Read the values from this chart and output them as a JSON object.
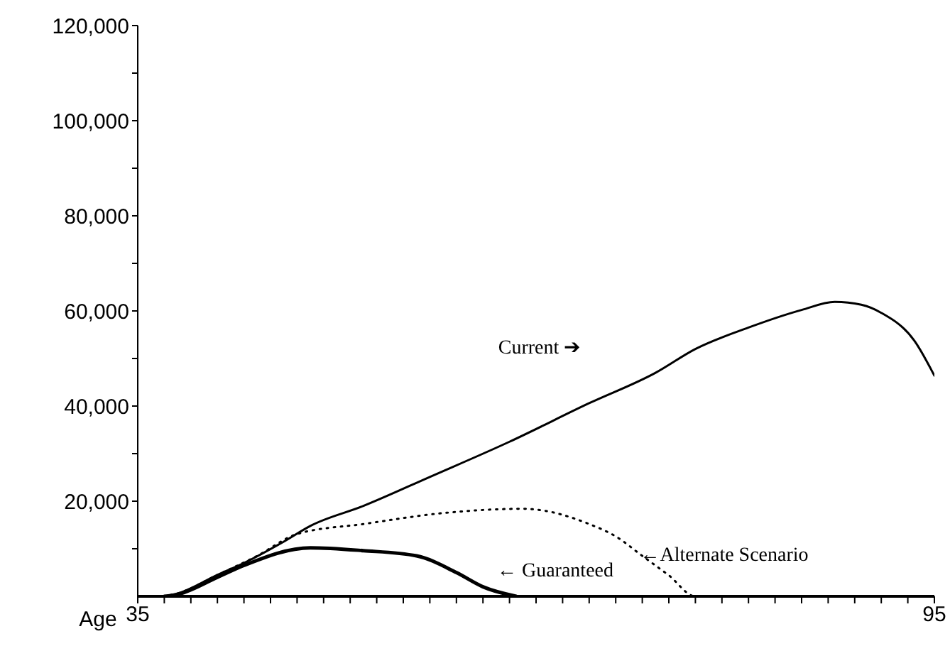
{
  "chart_data": {
    "type": "line",
    "marker": "none",
    "xlabel": "Age",
    "xlim": [
      35,
      95
    ],
    "xticks": [
      35,
      {
        "value": 37,
        "label": null
      },
      {
        "value": 39,
        "label": null
      },
      {
        "value": 41,
        "label": null
      },
      {
        "value": 43,
        "label": null
      },
      {
        "value": 45,
        "label": null
      },
      {
        "value": 47,
        "label": null
      },
      {
        "value": 49,
        "label": null
      },
      {
        "value": 51,
        "label": null
      },
      {
        "value": 53,
        "label": null
      },
      {
        "value": 55,
        "label": null
      },
      {
        "value": 57,
        "label": null
      },
      {
        "value": 59,
        "label": null
      },
      {
        "value": 61,
        "label": null
      },
      {
        "value": 63,
        "label": null
      },
      {
        "value": 65,
        "label": null
      },
      {
        "value": 67,
        "label": null
      },
      {
        "value": 69,
        "label": null
      },
      {
        "value": 71,
        "label": null
      },
      {
        "value": 73,
        "label": null
      },
      {
        "value": 75,
        "label": null
      },
      {
        "value": 77,
        "label": null
      },
      {
        "value": 79,
        "label": null
      },
      {
        "value": 81,
        "label": null
      },
      {
        "value": 83,
        "label": null
      },
      {
        "value": 85,
        "label": null
      },
      {
        "value": 87,
        "label": null
      },
      {
        "value": 89,
        "label": null
      },
      {
        "value": 91,
        "label": null
      },
      {
        "value": 93,
        "label": null
      },
      95
    ],
    "ylim": [
      0,
      120000
    ],
    "yticks": [
      {
        "value": 10000,
        "label": null
      },
      {
        "value": 20000,
        "label": "20,000"
      },
      {
        "value": 30000,
        "label": null
      },
      {
        "value": 40000,
        "label": "40,000"
      },
      {
        "value": 50000,
        "label": null
      },
      {
        "value": 60000,
        "label": "60,000"
      },
      {
        "value": 70000,
        "label": null
      },
      {
        "value": 80000,
        "label": "80,000"
      },
      {
        "value": 90000,
        "label": null
      },
      {
        "value": 100000,
        "label": "100,000"
      },
      {
        "value": 110000,
        "label": null
      },
      {
        "value": 120000,
        "label": "120,000"
      }
    ],
    "series": [
      {
        "color": "#000000",
        "line_style": "solid",
        "x": [
          37,
          38,
          41,
          43,
          46,
          48,
          52,
          57,
          63,
          69,
          74,
          77,
          81,
          85,
          87.5,
          89.5,
          91,
          93.5,
          95
        ],
        "values": [
          0,
          600,
          4500,
          7000,
          11500,
          14800,
          19000,
          25100,
          32500,
          40600,
          47000,
          52000,
          56500,
          60200,
          61900,
          61300,
          59600,
          53700,
          46400
        ]
      },
      {
        "color": "#000000",
        "line_style": "dotted",
        "x": [
          37,
          38,
          41,
          44,
          47,
          52,
          58,
          64,
          69,
          71,
          73,
          75,
          77,
          85,
          95
        ],
        "values": [
          0,
          600,
          4500,
          8500,
          13100,
          15200,
          17500,
          18400,
          15200,
          12600,
          8500,
          4400,
          0,
          0,
          0
        ]
      },
      {
        "color": "#000000",
        "line_style": "solid",
        "x": [
          37,
          38,
          41,
          43,
          48,
          52,
          56,
          59,
          61,
          63.5
        ],
        "values": [
          0,
          400,
          4000,
          6500,
          10200,
          9600,
          8500,
          5000,
          2000,
          0
        ]
      }
    ],
    "annotations": [
      "Current ➔",
      "←Alternate Scenario",
      "← Guaranteed"
    ]
  }
}
